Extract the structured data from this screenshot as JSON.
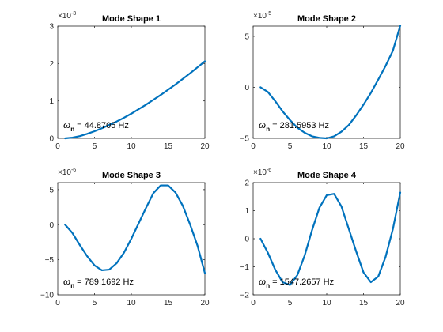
{
  "chart_data": [
    {
      "type": "line",
      "title": "Mode Shape 1",
      "x": [
        1,
        2,
        3,
        4,
        5,
        6,
        7,
        8,
        9,
        10,
        11,
        12,
        13,
        14,
        15,
        16,
        17,
        18,
        19,
        20
      ],
      "series": [
        {
          "values": [
            0.0,
            0.02,
            0.06,
            0.12,
            0.19,
            0.27,
            0.36,
            0.45,
            0.55,
            0.66,
            0.78,
            0.9,
            1.03,
            1.16,
            1.3,
            1.44,
            1.59,
            1.74,
            1.9,
            2.06
          ]
        }
      ],
      "xlim": [
        0,
        20
      ],
      "ylim": [
        0,
        3
      ],
      "xticks": [
        0,
        5,
        10,
        15,
        20
      ],
      "yticks": [
        0,
        1,
        2,
        3
      ],
      "exponent": "×10^-3",
      "ylabel": "",
      "xlabel": "",
      "annotation": {
        "symbol": "ω",
        "sub": "n",
        "text": " = 44.8705 Hz"
      },
      "color": "#0072BD"
    },
    {
      "type": "line",
      "title": "Mode Shape 2",
      "x": [
        1,
        2,
        3,
        4,
        5,
        6,
        7,
        8,
        9,
        10,
        11,
        12,
        13,
        14,
        15,
        16,
        17,
        18,
        19,
        20
      ],
      "series": [
        {
          "values": [
            0.0,
            -0.45,
            -1.35,
            -2.35,
            -3.2,
            -3.95,
            -4.45,
            -4.8,
            -4.95,
            -5.0,
            -4.8,
            -4.35,
            -3.7,
            -2.75,
            -1.7,
            -0.55,
            0.75,
            2.1,
            3.6,
            6.05
          ]
        }
      ],
      "xlim": [
        0,
        20
      ],
      "ylim": [
        -5,
        6
      ],
      "xticks": [
        0,
        5,
        10,
        15,
        20
      ],
      "yticks": [
        -5,
        0,
        5
      ],
      "exponent": "×10^-5",
      "ylabel": "",
      "xlabel": "",
      "annotation": {
        "symbol": "ω",
        "sub": "n",
        "text": " = 281.5953 Hz"
      },
      "color": "#0072BD"
    },
    {
      "type": "line",
      "title": "Mode Shape 3",
      "x": [
        1,
        2,
        3,
        4,
        5,
        6,
        7,
        8,
        9,
        10,
        11,
        12,
        13,
        14,
        15,
        16,
        17,
        18,
        19,
        20
      ],
      "series": [
        {
          "values": [
            0.0,
            -1.2,
            -2.9,
            -4.5,
            -5.8,
            -6.5,
            -6.4,
            -5.5,
            -4.0,
            -2.0,
            0.2,
            2.4,
            4.5,
            5.6,
            5.6,
            4.6,
            2.7,
            0.0,
            -3.0,
            -6.9
          ]
        }
      ],
      "xlim": [
        0,
        20
      ],
      "ylim": [
        -10,
        6
      ],
      "xticks": [
        0,
        5,
        10,
        15,
        20
      ],
      "yticks": [
        -10,
        -5,
        0,
        5
      ],
      "exponent": "×10^-6",
      "ylabel": "",
      "xlabel": "",
      "annotation": {
        "symbol": "ω",
        "sub": "n",
        "text": " = 789.1692 Hz"
      },
      "color": "#0072BD"
    },
    {
      "type": "line",
      "title": "Mode Shape 4",
      "x": [
        1,
        2,
        3,
        4,
        5,
        6,
        7,
        8,
        9,
        10,
        11,
        12,
        13,
        14,
        15,
        16,
        17,
        18,
        19,
        20
      ],
      "series": [
        {
          "values": [
            0.0,
            -0.5,
            -1.1,
            -1.55,
            -1.65,
            -1.3,
            -0.6,
            0.3,
            1.1,
            1.55,
            1.6,
            1.15,
            0.35,
            -0.45,
            -1.2,
            -1.55,
            -1.35,
            -0.65,
            0.35,
            1.65
          ]
        }
      ],
      "xlim": [
        0,
        20
      ],
      "ylim": [
        -2,
        2
      ],
      "xticks": [
        0,
        5,
        10,
        15,
        20
      ],
      "yticks": [
        -2,
        -1,
        0,
        1,
        2
      ],
      "exponent": "×10^-6",
      "ylabel": "",
      "xlabel": "",
      "annotation": {
        "symbol": "ω",
        "sub": "n",
        "text": " = 1547.2657 Hz"
      },
      "color": "#0072BD"
    }
  ]
}
